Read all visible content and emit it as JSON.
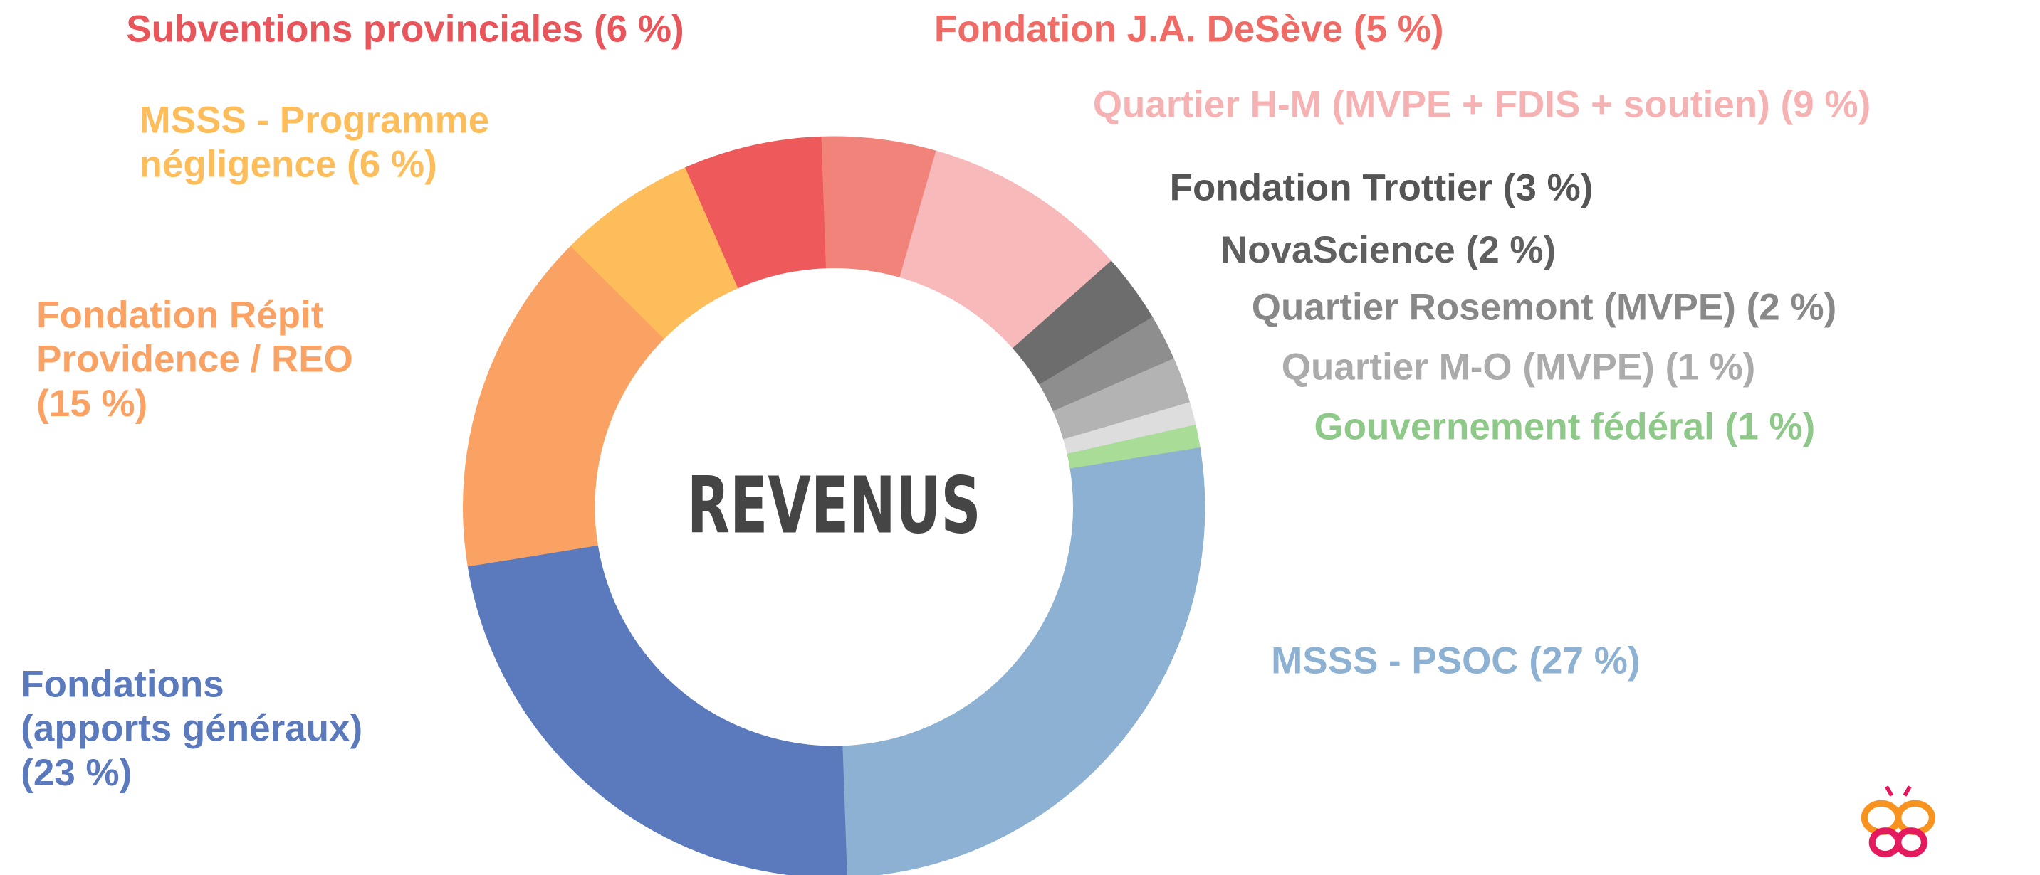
{
  "chart_data": {
    "type": "donut",
    "center_label": "REVENUS",
    "categories": [
      "Fondation J.A. DeSève",
      "Quartier H-M (MVPE + FDIS + soutien)",
      "Fondation Trottier",
      "NovaScience",
      "Quartier Rosemont (MVPE)",
      "Quartier M-O (MVPE)",
      "Gouvernement fédéral",
      "MSSS - PSOC",
      "Fondations\n(apports généraux)",
      "Fondation Répit\nProvidence / REO",
      "MSSS - Programme\nnégligence",
      "Subventions provinciales"
    ],
    "values": [
      5,
      9,
      3,
      2,
      2,
      1,
      1,
      27,
      23,
      15,
      6,
      6
    ],
    "value_labels": [
      "(5 %)",
      "(9 %)",
      "(3 %)",
      "(2 %)",
      "(2 %)",
      "(1 %)",
      "(1 %)",
      "(27 %)",
      "(23 %)",
      "(15 %)",
      "(6 %)",
      "(6 %)"
    ],
    "colors": [
      "#f2837a",
      "#f7b9b9",
      "#6d6d6d",
      "#8e8e8e",
      "#b3b3b3",
      "#dddddd",
      "#a9dc97",
      "#8db1d3",
      "#5a7abd",
      "#f9a263",
      "#fdbd5a",
      "#ee5a5b"
    ],
    "label_colors": [
      "#ef6c66",
      "#f6b2b2",
      "#555555",
      "#606060",
      "#888888",
      "#ababab",
      "#8fc98a",
      "#8db1d3",
      "#5a7abd",
      "#f9a263",
      "#fdbd5a",
      "#e8555a"
    ]
  }
}
